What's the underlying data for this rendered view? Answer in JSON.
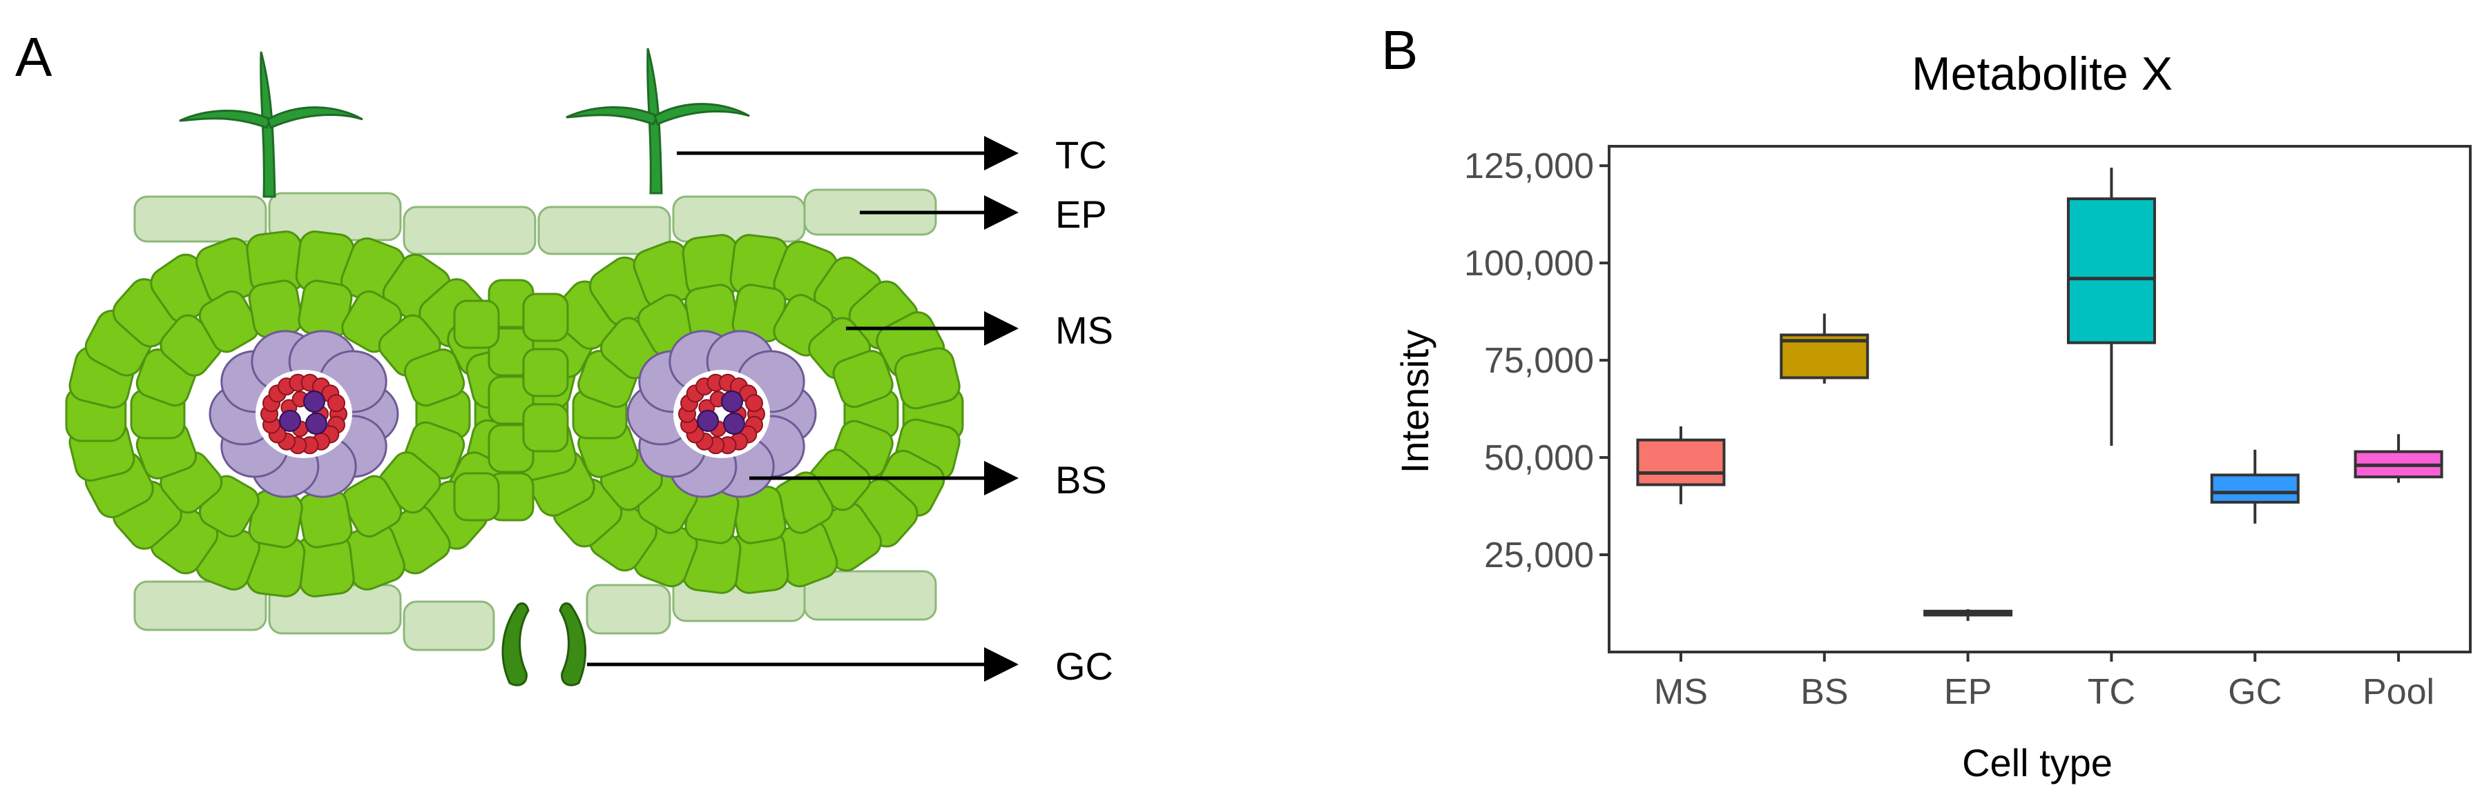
{
  "panel_a": {
    "label": "A",
    "cell_labels": [
      "TC",
      "EP",
      "MS",
      "BS",
      "GC"
    ],
    "colors": {
      "trichome": "#2a9a35",
      "epidermis": "#cfe3bf",
      "mesophyll": "#79c81a",
      "bundle_sheath": "#b3a4cf",
      "vascular": "#d42e3a",
      "vascular_core": "#5b2a8c",
      "guard_cell": "#3a8c14"
    }
  },
  "panel_b": {
    "label": "B"
  },
  "chart_data": {
    "type": "box",
    "title": "Metabolite X",
    "xlabel": "Cell type",
    "ylabel": "Intensity",
    "categories": [
      "MS",
      "BS",
      "EP",
      "TC",
      "GC",
      "Pool"
    ],
    "ylim": [
      0,
      130000
    ],
    "yticks": [
      25000,
      50000,
      75000,
      100000,
      125000
    ],
    "ytick_labels": [
      "25,000",
      "50,000",
      "75,000",
      "100,000",
      "125,000"
    ],
    "grid": false,
    "legend": "none",
    "boxes": [
      {
        "category": "MS",
        "min": 38000,
        "q1": 43000,
        "median": 46000,
        "q3": 54500,
        "max": 58000,
        "color": "#f8766d"
      },
      {
        "category": "BS",
        "min": 69000,
        "q1": 70500,
        "median": 80000,
        "q3": 81500,
        "max": 87000,
        "color": "#c49a00"
      },
      {
        "category": "EP",
        "min": 8000,
        "q1": 9500,
        "median": 10000,
        "q3": 10500,
        "max": 11000,
        "color": "#53b400"
      },
      {
        "category": "TC",
        "min": 53000,
        "q1": 79500,
        "median": 96000,
        "q3": 116500,
        "max": 124500,
        "color": "#00c0c0"
      },
      {
        "category": "GC",
        "min": 33000,
        "q1": 38500,
        "median": 41000,
        "q3": 45500,
        "max": 52000,
        "color": "#3399ff"
      },
      {
        "category": "Pool",
        "min": 43500,
        "q1": 45000,
        "median": 48000,
        "q3": 51500,
        "max": 56000,
        "color": "#fb61d7"
      }
    ]
  }
}
